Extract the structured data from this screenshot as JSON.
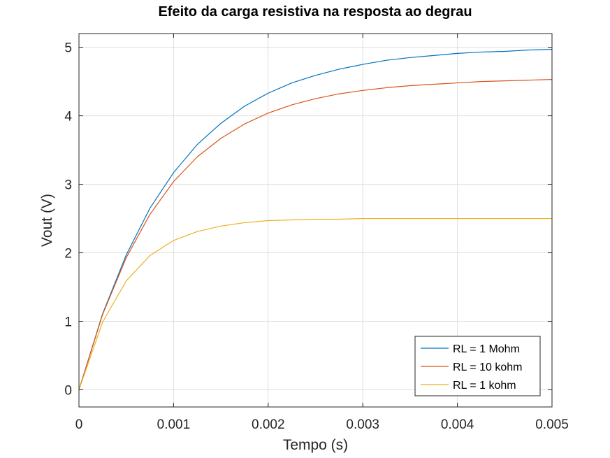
{
  "chart_data": {
    "type": "line",
    "title": "Efeito da carga resistiva na resposta ao degrau",
    "xlabel": "Tempo (s)",
    "ylabel": "Vout (V)",
    "xlim": [
      0,
      0.005
    ],
    "ylim": [
      -0.25,
      5.2
    ],
    "xticks": [
      0,
      0.001,
      0.002,
      0.003,
      0.004,
      0.005
    ],
    "xtick_labels": [
      "0",
      "0.001",
      "0.002",
      "0.003",
      "0.004",
      "0.005"
    ],
    "yticks": [
      0,
      1,
      2,
      3,
      4,
      5
    ],
    "ytick_labels": [
      "0",
      "1",
      "2",
      "3",
      "4",
      "5"
    ],
    "grid": true,
    "legend_position": "bottom-right",
    "series": [
      {
        "name": "RL = 1 Mohm",
        "color": "#0072BD",
        "x": [
          0,
          0.00025,
          0.0005,
          0.00075,
          0.001,
          0.00125,
          0.0015,
          0.00175,
          0.002,
          0.00225,
          0.0025,
          0.00275,
          0.003,
          0.00325,
          0.0035,
          0.00375,
          0.004,
          0.00425,
          0.0045,
          0.00475,
          0.005
        ],
        "values": [
          0,
          1.11,
          1.97,
          2.65,
          3.17,
          3.58,
          3.89,
          4.14,
          4.33,
          4.48,
          4.59,
          4.68,
          4.75,
          4.81,
          4.85,
          4.88,
          4.91,
          4.93,
          4.94,
          4.96,
          4.97
        ]
      },
      {
        "name": "RL = 10 kohm",
        "color": "#D95319",
        "x": [
          0,
          0.00025,
          0.0005,
          0.00075,
          0.001,
          0.00125,
          0.0015,
          0.00175,
          0.002,
          0.00225,
          0.0025,
          0.00275,
          0.003,
          0.00325,
          0.0035,
          0.00375,
          0.004,
          0.00425,
          0.0045,
          0.00475,
          0.005
        ],
        "values": [
          0,
          1.1,
          1.93,
          2.56,
          3.04,
          3.4,
          3.67,
          3.88,
          4.04,
          4.16,
          4.25,
          4.32,
          4.37,
          4.41,
          4.44,
          4.46,
          4.48,
          4.5,
          4.51,
          4.52,
          4.53
        ]
      },
      {
        "name": "RL = 1 kohm",
        "color": "#EDB120",
        "x": [
          0,
          0.00025,
          0.0005,
          0.00075,
          0.001,
          0.00125,
          0.0015,
          0.00175,
          0.002,
          0.00225,
          0.0025,
          0.00275,
          0.003,
          0.00325,
          0.0035,
          0.00375,
          0.004,
          0.00425,
          0.0045,
          0.00475,
          0.005
        ],
        "values": [
          0,
          0.99,
          1.59,
          1.96,
          2.18,
          2.31,
          2.39,
          2.44,
          2.47,
          2.48,
          2.49,
          2.49,
          2.5,
          2.5,
          2.5,
          2.5,
          2.5,
          2.5,
          2.5,
          2.5,
          2.5
        ]
      }
    ]
  }
}
